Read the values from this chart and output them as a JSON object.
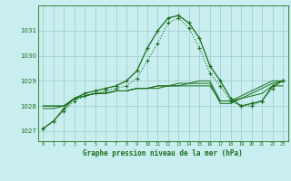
{
  "hours": [
    0,
    1,
    2,
    3,
    4,
    5,
    6,
    7,
    8,
    9,
    10,
    11,
    12,
    13,
    14,
    15,
    16,
    17,
    18,
    19,
    20,
    21,
    22,
    23
  ],
  "line1": [
    1027.1,
    1027.4,
    1027.9,
    1028.3,
    1028.5,
    1028.6,
    1028.7,
    1028.8,
    1029.0,
    1029.4,
    1030.3,
    1031.0,
    1031.5,
    1031.6,
    1031.3,
    1030.7,
    1029.6,
    1029.0,
    1028.3,
    1028.0,
    1028.1,
    1028.2,
    1028.8,
    1029.0
  ],
  "line2": [
    1027.1,
    1027.4,
    1027.8,
    1028.2,
    1028.4,
    1028.5,
    1028.6,
    1028.7,
    1028.8,
    1029.1,
    1029.8,
    1030.5,
    1031.3,
    1031.5,
    1031.1,
    1030.3,
    1029.3,
    1028.8,
    1028.2,
    1028.0,
    1028.0,
    1028.2,
    1028.7,
    1029.0
  ],
  "line3": [
    1027.9,
    1027.9,
    1028.0,
    1028.3,
    1028.4,
    1028.5,
    1028.5,
    1028.6,
    1028.6,
    1028.7,
    1028.7,
    1028.7,
    1028.8,
    1028.8,
    1028.8,
    1028.8,
    1028.8,
    1028.2,
    1028.2,
    1028.3,
    1028.4,
    1028.5,
    1028.8,
    1028.8
  ],
  "line4": [
    1028.0,
    1028.0,
    1028.0,
    1028.3,
    1028.4,
    1028.5,
    1028.5,
    1028.6,
    1028.6,
    1028.7,
    1028.7,
    1028.8,
    1028.8,
    1028.8,
    1028.9,
    1028.9,
    1028.9,
    1028.1,
    1028.1,
    1028.3,
    1028.5,
    1028.7,
    1028.9,
    1029.0
  ],
  "line5": [
    1028.0,
    1028.0,
    1028.0,
    1028.3,
    1028.4,
    1028.5,
    1028.5,
    1028.6,
    1028.6,
    1028.7,
    1028.7,
    1028.8,
    1028.8,
    1028.9,
    1028.9,
    1029.0,
    1029.0,
    1028.2,
    1028.2,
    1028.4,
    1028.6,
    1028.8,
    1029.0,
    1029.0
  ],
  "bg_color": "#c8eef0",
  "line_color": "#1a6e1a",
  "grid_color": "#a0c8c8",
  "xlabel": "Graphe pression niveau de la mer (hPa)",
  "ylim": [
    1026.6,
    1032.0
  ],
  "yticks": [
    1027,
    1028,
    1029,
    1030,
    1031
  ],
  "xticks": [
    0,
    1,
    2,
    3,
    4,
    5,
    6,
    7,
    8,
    9,
    10,
    11,
    12,
    13,
    14,
    15,
    16,
    17,
    18,
    19,
    20,
    21,
    22,
    23
  ]
}
